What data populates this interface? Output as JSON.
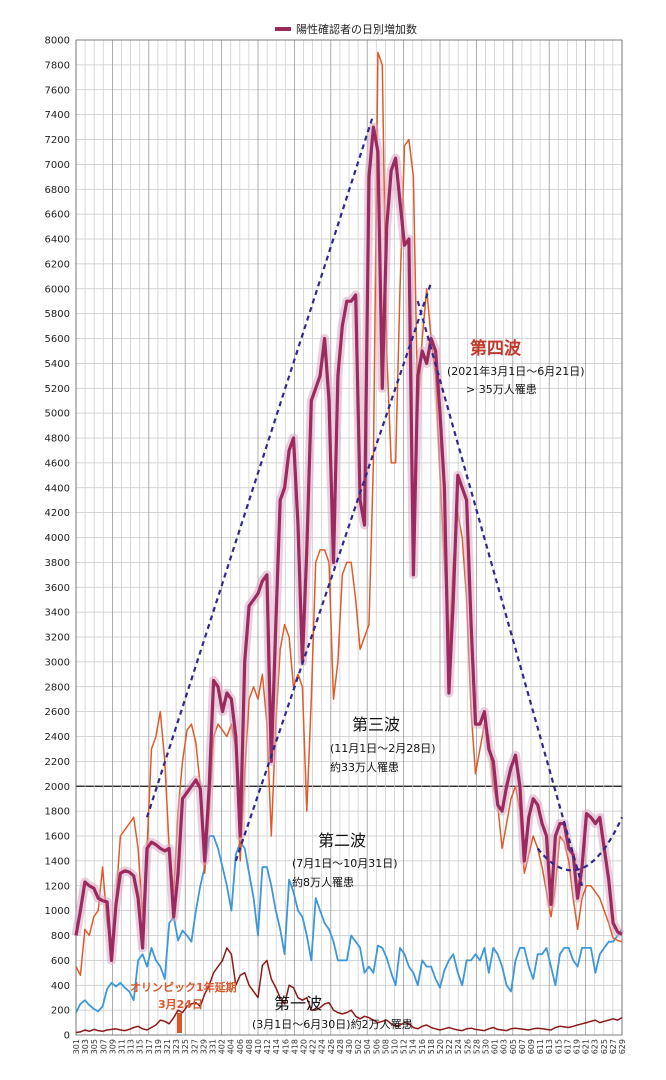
{
  "chart_data": {
    "type": "line",
    "legend": {
      "label": "陽性確認者の日別増加数",
      "placement": "top-center",
      "color": "#9b2b5e"
    },
    "y_axis": {
      "min": 0,
      "max": 8000,
      "step": 200,
      "grid": true
    },
    "x_tick_labels": [
      "301",
      "303",
      "305",
      "307",
      "309",
      "311",
      "313",
      "315",
      "317",
      "319",
      "321",
      "323",
      "325",
      "327",
      "329",
      "331",
      "402",
      "404",
      "406",
      "408",
      "410",
      "412",
      "414",
      "416",
      "418",
      "420",
      "422",
      "424",
      "426",
      "428",
      "430",
      "502",
      "504",
      "506",
      "508",
      "510",
      "512",
      "514",
      "516",
      "518",
      "520",
      "522",
      "524",
      "526",
      "528",
      "530",
      "601",
      "603",
      "605",
      "607",
      "609",
      "611",
      "613",
      "615",
      "617",
      "619",
      "621",
      "623",
      "625",
      "627",
      "629"
    ],
    "series": [
      {
        "name": "陽性確認者の日別増加数",
        "color": "#9b2b5e",
        "style": "thick-glow",
        "values": [
          800,
          1000,
          1230,
          1200,
          1180,
          1100,
          1080,
          1070,
          600,
          1050,
          1300,
          1320,
          1310,
          1280,
          1100,
          700,
          1500,
          1550,
          1530,
          1500,
          1480,
          1500,
          950,
          1300,
          1900,
          1950,
          2000,
          2050,
          1980,
          1400,
          2000,
          2850,
          2800,
          2600,
          2750,
          2700,
          2400,
          1600,
          3000,
          3450,
          3500,
          3550,
          3650,
          3700,
          2200,
          3300,
          4300,
          4400,
          4700,
          4800,
          4100,
          3000,
          3900,
          5100,
          5200,
          5300,
          5600,
          5100,
          3800,
          5300,
          5700,
          5900,
          5900,
          5950,
          4300,
          4100,
          6900,
          7300,
          7100,
          5200,
          6500,
          6950,
          7050,
          6700,
          6350,
          6400,
          3700,
          5300,
          5500,
          5400,
          5600,
          5500,
          5000,
          4400,
          2750,
          3500,
          4500,
          4400,
          4300,
          3300,
          2500,
          2500,
          2600,
          2300,
          2200,
          1850,
          1800,
          2000,
          2150,
          2250,
          2000,
          1400,
          1750,
          1900,
          1850,
          1700,
          1600,
          1050,
          1600,
          1700,
          1700,
          1500,
          1450,
          1100,
          1350,
          1780,
          1750,
          1700,
          1750,
          1500,
          1250,
          900,
          830,
          810
        ]
      },
      {
        "name": "",
        "color": "#e05a2a",
        "style": "thin",
        "values": [
          550,
          480,
          850,
          800,
          950,
          1000,
          1350,
          900,
          700,
          1100,
          1600,
          1650,
          1700,
          1750,
          1500,
          950,
          1500,
          2300,
          2400,
          2600,
          2200,
          1500,
          1150,
          1800,
          2200,
          2450,
          2500,
          2350,
          2000,
          1300,
          1800,
          2400,
          2500,
          2450,
          2400,
          2500,
          2300,
          1400,
          2100,
          2700,
          2800,
          2700,
          2900,
          2500,
          1600,
          2500,
          3100,
          3300,
          3200,
          2800,
          2900,
          2800,
          1800,
          2700,
          3800,
          3900,
          3900,
          3800,
          2700,
          3000,
          3700,
          3800,
          3800,
          3500,
          3100,
          3200,
          3300,
          4600,
          7900,
          7800,
          5500,
          4600,
          4600,
          6000,
          7150,
          7200,
          6900,
          5000,
          5600,
          6000,
          5600,
          5300,
          4500,
          3800,
          3100,
          3800,
          4200,
          4000,
          3500,
          2600,
          2100,
          2300,
          2500,
          2400,
          2000,
          1850,
          1500,
          1700,
          1900,
          2000,
          1800,
          1300,
          1450,
          1600,
          1500,
          1350,
          1150,
          950,
          1200,
          1600,
          1550,
          1400,
          1100,
          850,
          1100,
          1200,
          1200,
          1150,
          1100,
          1000,
          900,
          780,
          760,
          750
        ]
      },
      {
        "name": "",
        "color": "#3d97d9",
        "style": "medium",
        "values": [
          180,
          250,
          280,
          240,
          210,
          190,
          230,
          370,
          420,
          390,
          420,
          380,
          350,
          280,
          600,
          650,
          550,
          700,
          600,
          550,
          450,
          900,
          950,
          760,
          840,
          800,
          750,
          1000,
          1200,
          1350,
          1600,
          1600,
          1500,
          1350,
          1200,
          1000,
          1450,
          1550,
          1500,
          1300,
          1100,
          800,
          1350,
          1350,
          1200,
          1000,
          850,
          650,
          1250,
          1150,
          1000,
          950,
          800,
          600,
          1100,
          1000,
          900,
          850,
          750,
          600,
          600,
          600,
          800,
          750,
          700,
          500,
          550,
          500,
          720,
          700,
          620,
          500,
          400,
          700,
          650,
          550,
          500,
          400,
          600,
          550,
          550,
          450,
          380,
          520,
          600,
          650,
          500,
          400,
          600,
          600,
          650,
          600,
          700,
          500,
          700,
          650,
          550,
          400,
          350,
          600,
          700,
          700,
          550,
          450,
          650,
          650,
          700,
          550,
          400,
          650,
          700,
          700,
          600,
          550,
          700,
          700,
          700,
          500,
          650,
          700,
          750,
          750,
          800,
          850
        ]
      },
      {
        "name": "",
        "color": "#8b1a1a",
        "style": "thin",
        "values": [
          20,
          25,
          40,
          30,
          45,
          35,
          30,
          40,
          45,
          50,
          40,
          35,
          45,
          60,
          70,
          50,
          40,
          60,
          80,
          120,
          110,
          90,
          140,
          200,
          180,
          230,
          250,
          260,
          230,
          330,
          400,
          500,
          550,
          600,
          700,
          650,
          400,
          480,
          500,
          400,
          350,
          300,
          560,
          600,
          450,
          380,
          300,
          250,
          400,
          380,
          300,
          280,
          300,
          200,
          200,
          220,
          250,
          260,
          200,
          180,
          170,
          180,
          200,
          150,
          130,
          150,
          140,
          120,
          100,
          110,
          120,
          90,
          70,
          80,
          100,
          90,
          60,
          50,
          70,
          80,
          60,
          50,
          40,
          50,
          60,
          50,
          40,
          35,
          50,
          55,
          45,
          40,
          35,
          50,
          60,
          45,
          40,
          35,
          50,
          55,
          50,
          45,
          40,
          50,
          55,
          50,
          45,
          40,
          60,
          70,
          65,
          60,
          70,
          80,
          90,
          100,
          110,
          120,
          100,
          110,
          120,
          130,
          120,
          140
        ]
      }
    ],
    "trendlines_color": "#2e2a8c",
    "annotations": {
      "wave4_title": "第四波",
      "wave4_period": "(2021年3月1日〜6月21日)",
      "wave4_count": "> 35万人罹患",
      "wave3_title": "第三波",
      "wave3_period": "(11月1日〜2月28日)",
      "wave3_count": "約33万人罹患",
      "wave2_title": "第二波",
      "wave2_period": "(7月1日〜10月31日)",
      "wave2_count": "約8万人罹患",
      "wave1_title": "第一波",
      "wave1_period": "(3月1日〜6月30日)約2万人罹患",
      "olympic_line1": "オリンピック1年延期",
      "olympic_line2": "3月24日"
    }
  }
}
